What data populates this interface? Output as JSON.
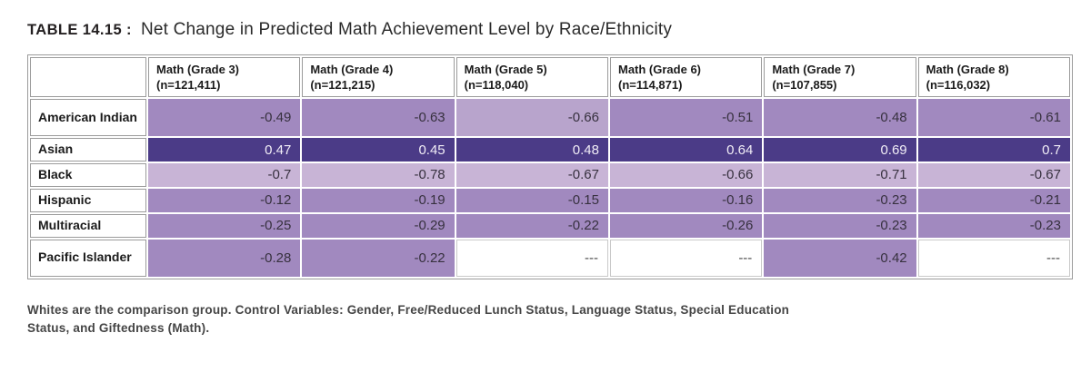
{
  "title": {
    "label": "TABLE 14.15 :",
    "text": "Net Change in Predicted Math Achievement Level by Race/Ethnicity"
  },
  "table": {
    "columns": [
      {
        "label": "Math (Grade 3)",
        "n": "(n=121,411)"
      },
      {
        "label": "Math (Grade 4)",
        "n": "(n=121,215)"
      },
      {
        "label": "Math (Grade 5)",
        "n": "(n=118,040)"
      },
      {
        "label": "Math (Grade 6)",
        "n": "(n=114,871)"
      },
      {
        "label": "Math (Grade 7)",
        "n": "(n=107,855)"
      },
      {
        "label": "Math (Grade 8)",
        "n": "(n=116,032)"
      }
    ],
    "rows": [
      {
        "label": "American Indian",
        "tall": true,
        "cells": [
          {
            "value": "-0.49",
            "shade": "medium"
          },
          {
            "value": "-0.63",
            "shade": "medium"
          },
          {
            "value": "-0.66",
            "shade": "medlight"
          },
          {
            "value": "-0.51",
            "shade": "medium"
          },
          {
            "value": "-0.48",
            "shade": "medium"
          },
          {
            "value": "-0.61",
            "shade": "medium"
          }
        ]
      },
      {
        "label": "Asian",
        "tall": false,
        "cells": [
          {
            "value": "0.47",
            "shade": "dark"
          },
          {
            "value": "0.45",
            "shade": "dark"
          },
          {
            "value": "0.48",
            "shade": "dark"
          },
          {
            "value": "0.64",
            "shade": "dark"
          },
          {
            "value": "0.69",
            "shade": "dark"
          },
          {
            "value": "0.7",
            "shade": "dark"
          }
        ]
      },
      {
        "label": "Black",
        "tall": false,
        "cells": [
          {
            "value": "-0.7",
            "shade": "light"
          },
          {
            "value": "-0.78",
            "shade": "light"
          },
          {
            "value": "-0.67",
            "shade": "light"
          },
          {
            "value": "-0.66",
            "shade": "light"
          },
          {
            "value": "-0.71",
            "shade": "light"
          },
          {
            "value": "-0.67",
            "shade": "light"
          }
        ]
      },
      {
        "label": "Hispanic",
        "tall": false,
        "cells": [
          {
            "value": "-0.12",
            "shade": "medium"
          },
          {
            "value": "-0.19",
            "shade": "medium"
          },
          {
            "value": "-0.15",
            "shade": "medium"
          },
          {
            "value": "-0.16",
            "shade": "medium"
          },
          {
            "value": "-0.23",
            "shade": "medium"
          },
          {
            "value": "-0.21",
            "shade": "medium"
          }
        ]
      },
      {
        "label": "Multiracial",
        "tall": false,
        "cells": [
          {
            "value": "-0.25",
            "shade": "medium"
          },
          {
            "value": "-0.29",
            "shade": "medium"
          },
          {
            "value": "-0.22",
            "shade": "medium"
          },
          {
            "value": "-0.26",
            "shade": "medium"
          },
          {
            "value": "-0.23",
            "shade": "medium"
          },
          {
            "value": "-0.23",
            "shade": "medium"
          }
        ]
      },
      {
        "label": "Pacific Islander",
        "tall": true,
        "cells": [
          {
            "value": "-0.28",
            "shade": "medium"
          },
          {
            "value": "-0.22",
            "shade": "medium"
          },
          {
            "value": "---",
            "shade": "empty"
          },
          {
            "value": "---",
            "shade": "empty"
          },
          {
            "value": "-0.42",
            "shade": "medium"
          },
          {
            "value": "---",
            "shade": "empty"
          }
        ]
      }
    ]
  },
  "footnote": {
    "line1": "Whites are the comparison group. Control Variables: Gender, Free/Reduced Lunch Status, Language Status, Special Education",
    "line2": "Status, and Giftedness (Math)."
  },
  "colors": {
    "dark": "#4b3b87",
    "medium": "#a189bf",
    "medlight": "#b8a4cc",
    "light": "#c8b4d6",
    "empty": "#ffffff",
    "empty_border": "#c9c9c9",
    "text_on_dark": "#f2eef7",
    "text_on_light": "#37313f",
    "text_empty": "#4a4a4a"
  },
  "chart_data": {
    "type": "table",
    "title": "Net Change in Predicted Math Achievement Level by Race/Ethnicity",
    "columns": [
      "Math (Grade 3) (n=121,411)",
      "Math (Grade 4) (n=121,215)",
      "Math (Grade 5) (n=118,040)",
      "Math (Grade 6) (n=114,871)",
      "Math (Grade 7) (n=107,855)",
      "Math (Grade 8) (n=116,032)"
    ],
    "row_labels": [
      "American Indian",
      "Asian",
      "Black",
      "Hispanic",
      "Multiracial",
      "Pacific Islander"
    ],
    "values": [
      [
        -0.49,
        -0.63,
        -0.66,
        -0.51,
        -0.48,
        -0.61
      ],
      [
        0.47,
        0.45,
        0.48,
        0.64,
        0.69,
        0.7
      ],
      [
        -0.7,
        -0.78,
        -0.67,
        -0.66,
        -0.71,
        -0.67
      ],
      [
        -0.12,
        -0.19,
        -0.15,
        -0.16,
        -0.23,
        -0.21
      ],
      [
        -0.25,
        -0.29,
        -0.22,
        -0.26,
        -0.23,
        -0.23
      ],
      [
        -0.28,
        -0.22,
        null,
        null,
        -0.42,
        null
      ]
    ],
    "comparison_group": "Whites",
    "control_variables": [
      "Gender",
      "Free/Reduced Lunch Status",
      "Language Status",
      "Special Education Status",
      "Giftedness (Math)"
    ]
  }
}
